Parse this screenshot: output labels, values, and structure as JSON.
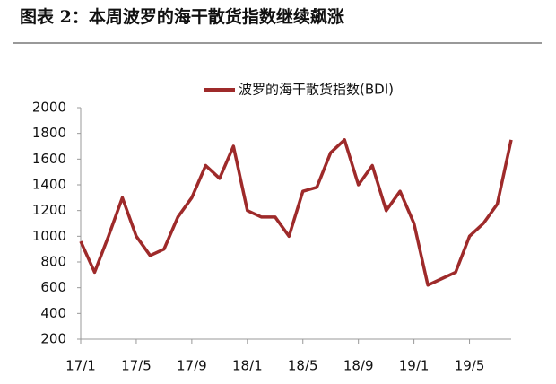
{
  "chart_data": {
    "type": "line",
    "title": "图表 2：本周波罗的海干散货指数继续飙涨",
    "x": [
      "17/1",
      "17/2",
      "17/3",
      "17/4",
      "17/5",
      "17/6",
      "17/7",
      "17/8",
      "17/9",
      "17/10",
      "17/11",
      "17/12",
      "18/1",
      "18/2",
      "18/3",
      "18/4",
      "18/5",
      "18/6",
      "18/7",
      "18/8",
      "18/9",
      "18/10",
      "18/11",
      "18/12",
      "19/1",
      "19/2",
      "19/3",
      "19/4",
      "19/5",
      "19/6",
      "19/7",
      "19/8"
    ],
    "xticks": [
      "17/1",
      "17/5",
      "17/9",
      "18/1",
      "18/5",
      "18/9",
      "19/1",
      "19/5"
    ],
    "series": [
      {
        "name": "波罗的海干散货指数(BDI)",
        "color": "#9e2a2a",
        "values": [
          960,
          720,
          1000,
          1300,
          1000,
          850,
          900,
          1150,
          1300,
          1550,
          1450,
          1700,
          1200,
          1150,
          1150,
          1000,
          1350,
          1380,
          1650,
          1750,
          1400,
          1550,
          1200,
          1350,
          1100,
          620,
          670,
          720,
          1000,
          1100,
          1250,
          1750
        ]
      }
    ],
    "ylim": [
      200,
      2000
    ],
    "yticks": [
      200,
      400,
      600,
      800,
      1000,
      1200,
      1400,
      1600,
      1800,
      2000
    ]
  }
}
